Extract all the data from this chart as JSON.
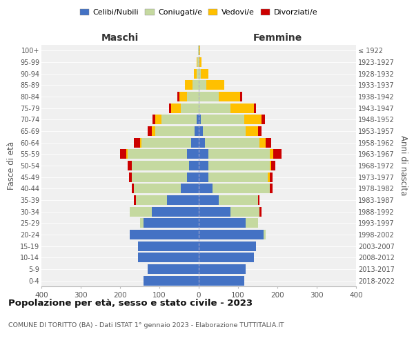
{
  "age_groups": [
    "0-4",
    "5-9",
    "10-14",
    "15-19",
    "20-24",
    "25-29",
    "30-34",
    "35-39",
    "40-44",
    "45-49",
    "50-54",
    "55-59",
    "60-64",
    "65-69",
    "70-74",
    "75-79",
    "80-84",
    "85-89",
    "90-94",
    "95-99",
    "100+"
  ],
  "birth_years": [
    "2018-2022",
    "2013-2017",
    "2008-2012",
    "2003-2007",
    "1998-2002",
    "1993-1997",
    "1988-1992",
    "1983-1987",
    "1978-1982",
    "1973-1977",
    "1968-1972",
    "1963-1967",
    "1958-1962",
    "1953-1957",
    "1948-1952",
    "1943-1947",
    "1938-1942",
    "1933-1937",
    "1928-1932",
    "1923-1927",
    "≤ 1922"
  ],
  "maschi_celibi": [
    140,
    130,
    155,
    155,
    175,
    140,
    120,
    80,
    45,
    30,
    25,
    30,
    20,
    10,
    5,
    0,
    0,
    0,
    0,
    0,
    0
  ],
  "maschi_coniugati": [
    0,
    0,
    0,
    0,
    0,
    10,
    55,
    80,
    120,
    140,
    145,
    150,
    125,
    100,
    90,
    45,
    30,
    15,
    5,
    3,
    2
  ],
  "maschi_vedovi": [
    0,
    0,
    0,
    0,
    0,
    0,
    0,
    0,
    0,
    0,
    0,
    5,
    5,
    10,
    15,
    25,
    20,
    20,
    8,
    2,
    0
  ],
  "maschi_divorziati": [
    0,
    0,
    0,
    0,
    0,
    0,
    0,
    5,
    5,
    8,
    10,
    15,
    15,
    10,
    8,
    5,
    5,
    0,
    0,
    0,
    0
  ],
  "femmine_celibi": [
    115,
    120,
    140,
    145,
    165,
    120,
    80,
    50,
    35,
    25,
    25,
    25,
    15,
    10,
    5,
    0,
    0,
    0,
    0,
    0,
    0
  ],
  "femmine_coniugati": [
    0,
    0,
    0,
    0,
    5,
    30,
    75,
    100,
    145,
    150,
    155,
    155,
    140,
    110,
    110,
    80,
    50,
    20,
    5,
    2,
    1
  ],
  "femmine_vedovi": [
    0,
    0,
    0,
    0,
    0,
    0,
    0,
    0,
    0,
    5,
    5,
    10,
    15,
    30,
    45,
    60,
    55,
    45,
    20,
    5,
    2
  ],
  "femmine_divorziati": [
    0,
    0,
    0,
    0,
    0,
    0,
    5,
    5,
    8,
    8,
    10,
    20,
    15,
    10,
    8,
    5,
    5,
    0,
    0,
    0,
    0
  ],
  "colors": {
    "celibi": "#4472c4",
    "coniugati": "#c5d9a0",
    "vedovi": "#ffc000",
    "divorziati": "#cc0000"
  },
  "title": "Popolazione per età, sesso e stato civile - 2023",
  "subtitle": "COMUNE DI TORITTO (BA) - Dati ISTAT 1° gennaio 2023 - Elaborazione TUTTITALIA.IT",
  "xlabel_left": "Maschi",
  "xlabel_right": "Femmine",
  "ylabel_left": "Fasce di età",
  "ylabel_right": "Anni di nascita",
  "xlim": 400,
  "background_color": "#ffffff",
  "plot_bg": "#f0f0f0",
  "legend_labels": [
    "Celibi/Nubili",
    "Coniugati/e",
    "Vedovi/e",
    "Divorziati/e"
  ]
}
